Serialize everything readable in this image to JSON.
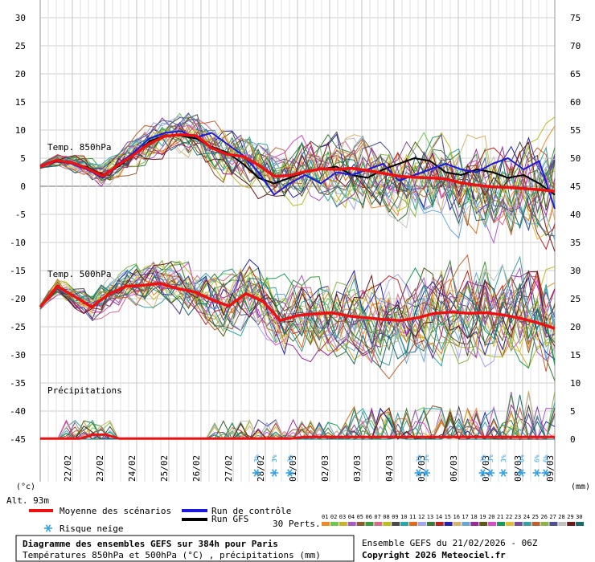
{
  "chart_data": {
    "type": "line",
    "left_axis_ticks": [
      30,
      25,
      20,
      15,
      10,
      5,
      0,
      -5,
      -10,
      -15,
      -20,
      -25,
      -30,
      -35,
      -40,
      -45
    ],
    "right_axis_ticks": [
      75,
      70,
      65,
      60,
      55,
      50,
      45,
      40,
      35,
      30,
      25,
      20,
      15,
      10,
      5,
      0
    ],
    "left_axis_unit": "(°c)",
    "right_axis_unit": "(mm)",
    "altitude_label": "Alt. 93m",
    "x_labels": [
      "22/02",
      "23/02",
      "24/02",
      "25/02",
      "26/02",
      "27/02",
      "28/02",
      "01/03",
      "02/03",
      "03/03",
      "04/03",
      "05/03",
      "06/03",
      "07/03",
      "08/03",
      "09/03"
    ],
    "series_labels": {
      "t850": "Temp. 850hPa",
      "t500": "Temp. 500hPa",
      "precip": "Précipitations"
    },
    "mean_850": [
      3.5,
      4.6,
      4.2,
      3.2,
      1.8,
      3.8,
      5.6,
      7.6,
      8.9,
      9.2,
      9.0,
      6.8,
      5.7,
      5.3,
      3.8,
      1.8,
      1.9,
      2.6,
      3.1,
      3.0,
      3.2,
      2.8,
      2.3,
      1.8,
      1.6,
      1.5,
      1.3,
      0.6,
      0.2,
      -0.1,
      -0.2,
      -0.4,
      -0.6,
      -0.9
    ],
    "mean_500": [
      -21.5,
      -17.8,
      -19.6,
      -21.5,
      -19.2,
      -17.8,
      -17.6,
      -17.3,
      -18.2,
      -18.8,
      -20.2,
      -21.3,
      -19.1,
      -20.5,
      -23.9,
      -23.0,
      -22.7,
      -22.5,
      -23.1,
      -23.4,
      -23.7,
      -23.9,
      -23.4,
      -22.6,
      -22.4,
      -22.6,
      -22.5,
      -22.9,
      -23.5,
      -24.3,
      -25.3
    ],
    "control_850": [
      3.5,
      4.5,
      4.0,
      3.0,
      1.5,
      4.0,
      6.0,
      8.5,
      9.5,
      9.8,
      8.7,
      9.5,
      7.5,
      5.5,
      2.5,
      -1.5,
      0.5,
      2.0,
      0.5,
      2.5,
      2.0,
      3.0,
      4.0,
      1.0,
      2.0,
      3.0,
      4.0,
      3.0,
      2.5,
      4.0,
      5.0,
      3.0,
      4.5,
      -4.0
    ],
    "gfs_850": [
      3.6,
      4.4,
      4.1,
      3.4,
      2.0,
      3.5,
      5.5,
      8.0,
      9.0,
      9.0,
      8.5,
      7.0,
      6.0,
      4.0,
      1.5,
      0.5,
      1.5,
      2.5,
      3.0,
      3.5,
      2.0,
      1.5,
      3.0,
      4.0,
      5.0,
      4.5,
      2.5,
      2.0,
      3.0,
      2.5,
      1.5,
      2.0,
      0.5,
      -1.5
    ],
    "snow_risk_labels": [
      "3%",
      "3%",
      "3%",
      "3%",
      "3%",
      "3%",
      "3%",
      "3%",
      "6%",
      "6%",
      "6%"
    ],
    "legend": {
      "mean": "Moyenne des scénarios",
      "control": "Run de contrôle",
      "gfs": "Run GFS",
      "snow": "Risque neige",
      "perts": "30 Perts.",
      "pert_numbers": [
        "01",
        "02",
        "03",
        "04",
        "05",
        "06",
        "07",
        "08",
        "09",
        "10",
        "11",
        "12",
        "13",
        "14",
        "15",
        "16",
        "17",
        "18",
        "19",
        "20",
        "21",
        "22",
        "23",
        "24",
        "25",
        "26",
        "27",
        "28",
        "29",
        "30"
      ]
    },
    "colors": {
      "mean": "#ee1111",
      "control": "#1a1adf",
      "gfs": "#000000",
      "snow": "#33a3e6",
      "pert_swatches": [
        "#f08a23",
        "#6ec64c",
        "#c9b328",
        "#aa58c6",
        "#8a5a30",
        "#3c9a3c",
        "#d76a86",
        "#bdbd20",
        "#4a4a4a",
        "#2aa8a8",
        "#e36a17",
        "#a4a4ee",
        "#3a7a3a",
        "#bb2222",
        "#2222aa",
        "#d7b36a",
        "#66a6d6",
        "#9a2a9a",
        "#5a5a1a",
        "#da4acb",
        "#1a9a5a",
        "#e0c030",
        "#7a4a9a",
        "#3aa0a0",
        "#c06030",
        "#8ab44a",
        "#505090",
        "#c0c0c0",
        "#6a1a1a",
        "#1a6a6a"
      ]
    },
    "footer": {
      "title": "Diagramme des ensembles GEFS sur 384h pour Paris",
      "subtitle": "Températures 850hPa et 500hPa (°C) , précipitations (mm)",
      "run": "Ensemble GEFS du 21/02/2026 - 06Z",
      "copyright": "Copyright 2026 Meteociel.fr"
    }
  }
}
